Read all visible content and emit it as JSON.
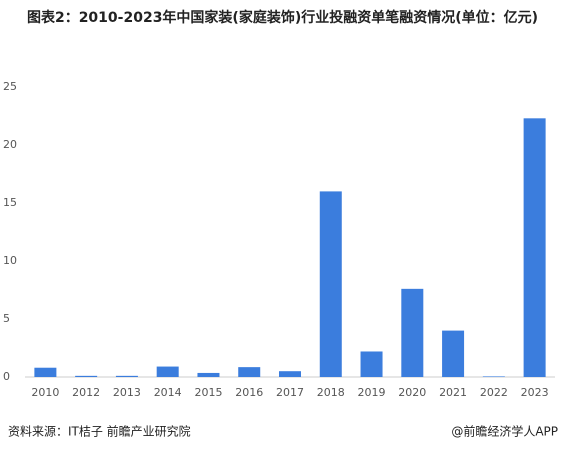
{
  "chart_data": {
    "type": "bar",
    "title": "图表2：2010-2023年中国家装(家庭装饰)行业投融资单笔融资情况(单位：亿元)",
    "categories": [
      "2010",
      "2012",
      "2013",
      "2014",
      "2015",
      "2016",
      "2017",
      "2018",
      "2019",
      "2020",
      "2021",
      "2022",
      "2023"
    ],
    "values": [
      0.8,
      0.1,
      0.1,
      0.9,
      0.35,
      0.85,
      0.5,
      16.0,
      2.2,
      7.6,
      4.0,
      0.05,
      22.3
    ],
    "color": "#3b7ddd",
    "ylim": [
      0,
      25
    ],
    "yticks": [
      0,
      5,
      10,
      15,
      20,
      25
    ],
    "grid": false,
    "source": "资料来源：IT桔子 前瞻产业研究院",
    "credit": "@前瞻经济学人APP"
  }
}
